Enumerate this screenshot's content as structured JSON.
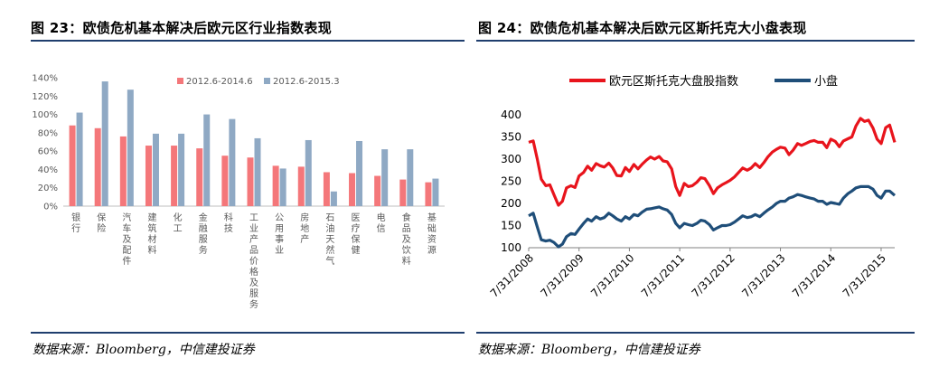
{
  "left": {
    "title": "图 23：欧债危机基本解决后欧元区行业指数表现",
    "source": "数据来源：Bloomberg，中信建投证券",
    "chart_data": {
      "type": "bar",
      "categories": [
        "银行",
        "保险",
        "汽车及配件",
        "建筑材料",
        "化工",
        "金融服务",
        "科技",
        "工业产品价格及服务",
        "公用事业",
        "房地产",
        "石油天然气",
        "医疗保健",
        "电信",
        "食品及饮料",
        "基础资源"
      ],
      "series": [
        {
          "name": "2012.6-2014.6",
          "color": "#f4777a",
          "values": [
            88,
            85,
            76,
            66,
            66,
            63,
            55,
            53,
            44,
            43,
            37,
            36,
            33,
            29,
            26
          ]
        },
        {
          "name": "2012.6-2015.3",
          "color": "#8fa9c4",
          "values": [
            102,
            136,
            127,
            79,
            79,
            100,
            95,
            74,
            41,
            72,
            16,
            71,
            62,
            62,
            30
          ]
        }
      ],
      "yticks": [
        "0%",
        "20%",
        "40%",
        "60%",
        "80%",
        "100%",
        "120%",
        "140%"
      ],
      "ylim": [
        0,
        140
      ],
      "legend_position": "top"
    }
  },
  "right": {
    "title": "图 24：欧债危机基本解决后欧元区斯托克大小盘表现",
    "source": "数据来源：Bloomberg，中信建投证券",
    "chart_data": {
      "type": "line",
      "xticks": [
        "7/31/2008",
        "7/31/2009",
        "7/31/2010",
        "7/31/2011",
        "7/31/2012",
        "7/31/2013",
        "7/31/2014",
        "7/31/2015"
      ],
      "xlim": [
        2008.58,
        2015.85
      ],
      "ylim": [
        100,
        400
      ],
      "yticks": [
        "100",
        "150",
        "200",
        "250",
        "300",
        "350",
        "400"
      ],
      "legend_position": "top",
      "series": [
        {
          "name": "欧元区斯托克大盘股指数",
          "color": "#e8141c",
          "x": [
            2008.58,
            2008.67,
            2008.75,
            2008.83,
            2008.92,
            2009.0,
            2009.08,
            2009.17,
            2009.25,
            2009.33,
            2009.42,
            2009.5,
            2009.58,
            2009.67,
            2009.75,
            2009.83,
            2009.92,
            2010.0,
            2010.08,
            2010.17,
            2010.25,
            2010.33,
            2010.42,
            2010.5,
            2010.58,
            2010.67,
            2010.75,
            2010.83,
            2010.92,
            2011.0,
            2011.08,
            2011.17,
            2011.25,
            2011.33,
            2011.42,
            2011.5,
            2011.58,
            2011.67,
            2011.75,
            2011.83,
            2011.92,
            2012.0,
            2012.08,
            2012.17,
            2012.25,
            2012.33,
            2012.42,
            2012.5,
            2012.58,
            2012.67,
            2012.75,
            2012.83,
            2012.92,
            2013.0,
            2013.08,
            2013.17,
            2013.25,
            2013.33,
            2013.42,
            2013.5,
            2013.58,
            2013.67,
            2013.75,
            2013.83,
            2013.92,
            2014.0,
            2014.08,
            2014.17,
            2014.25,
            2014.33,
            2014.42,
            2014.5,
            2014.58,
            2014.67,
            2014.75,
            2014.83,
            2014.92,
            2015.0,
            2015.08,
            2015.17,
            2015.25,
            2015.33,
            2015.42,
            2015.5,
            2015.58,
            2015.67,
            2015.75,
            2015.85
          ],
          "y": [
            338,
            341,
            300,
            255,
            240,
            242,
            220,
            196,
            205,
            235,
            240,
            236,
            262,
            270,
            284,
            275,
            290,
            285,
            282,
            291,
            280,
            263,
            262,
            281,
            272,
            288,
            278,
            288,
            298,
            305,
            300,
            306,
            296,
            294,
            278,
            238,
            218,
            245,
            238,
            240,
            248,
            258,
            256,
            240,
            222,
            235,
            242,
            247,
            252,
            260,
            270,
            280,
            275,
            280,
            290,
            281,
            292,
            305,
            316,
            322,
            327,
            325,
            310,
            320,
            335,
            331,
            335,
            340,
            342,
            338,
            338,
            326,
            345,
            340,
            328,
            341,
            346,
            350,
            375,
            392,
            385,
            388,
            370,
            345,
            335,
            371,
            377,
            338
          ]
        },
        {
          "name": "小盘",
          "color": "#1f4e79",
          "x": [
            2008.58,
            2008.67,
            2008.75,
            2008.83,
            2008.92,
            2009.0,
            2009.08,
            2009.17,
            2009.25,
            2009.33,
            2009.42,
            2009.5,
            2009.58,
            2009.67,
            2009.75,
            2009.83,
            2009.92,
            2010.0,
            2010.08,
            2010.17,
            2010.25,
            2010.33,
            2010.42,
            2010.5,
            2010.58,
            2010.67,
            2010.75,
            2010.83,
            2010.92,
            2011.0,
            2011.08,
            2011.17,
            2011.25,
            2011.33,
            2011.42,
            2011.5,
            2011.58,
            2011.67,
            2011.75,
            2011.83,
            2011.92,
            2012.0,
            2012.08,
            2012.17,
            2012.25,
            2012.33,
            2012.42,
            2012.5,
            2012.58,
            2012.67,
            2012.75,
            2012.83,
            2012.92,
            2013.0,
            2013.08,
            2013.17,
            2013.25,
            2013.33,
            2013.42,
            2013.5,
            2013.58,
            2013.67,
            2013.75,
            2013.83,
            2013.92,
            2014.0,
            2014.08,
            2014.17,
            2014.25,
            2014.33,
            2014.42,
            2014.5,
            2014.58,
            2014.67,
            2014.75,
            2014.83,
            2014.92,
            2015.0,
            2015.08,
            2015.17,
            2015.25,
            2015.33,
            2015.42,
            2015.5,
            2015.58,
            2015.67,
            2015.75,
            2015.85
          ],
          "y": [
            172,
            178,
            147,
            118,
            115,
            117,
            112,
            102,
            108,
            125,
            132,
            130,
            142,
            155,
            165,
            160,
            170,
            165,
            168,
            178,
            172,
            165,
            160,
            170,
            165,
            175,
            172,
            180,
            187,
            188,
            190,
            192,
            188,
            185,
            175,
            155,
            145,
            155,
            152,
            150,
            155,
            162,
            160,
            152,
            140,
            145,
            150,
            150,
            152,
            158,
            165,
            172,
            168,
            170,
            175,
            170,
            178,
            185,
            192,
            200,
            205,
            205,
            212,
            215,
            220,
            218,
            215,
            212,
            210,
            205,
            205,
            198,
            202,
            200,
            198,
            212,
            222,
            228,
            235,
            238,
            238,
            238,
            232,
            218,
            212,
            228,
            228,
            218
          ]
        }
      ]
    }
  }
}
